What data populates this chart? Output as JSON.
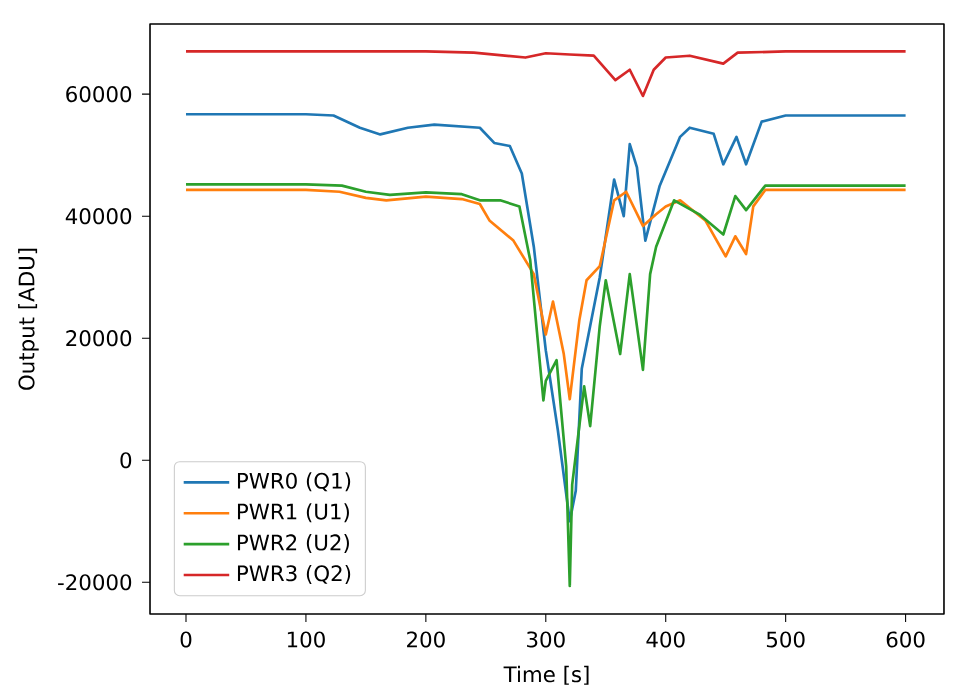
{
  "chart_data": {
    "type": "line",
    "xlabel": "Time [s]",
    "ylabel": "Output [ADU]",
    "xlim": [
      -30,
      632
    ],
    "ylim": [
      -25200,
      71500
    ],
    "xticks": [
      0,
      100,
      200,
      300,
      400,
      500,
      600
    ],
    "yticks": [
      -20000,
      0,
      20000,
      40000,
      60000
    ],
    "grid": false,
    "legend": "bottom left",
    "marker": "none",
    "line_style": "solid",
    "series": [
      {
        "name": "PWR0 (Q1)",
        "color": "#1f77b4",
        "x": [
          0,
          100,
          123,
          145,
          162,
          185,
          207,
          245,
          257,
          270,
          280,
          290,
          300,
          310,
          320,
          325,
          330,
          337,
          345,
          357,
          365,
          370,
          376,
          383,
          395,
          412,
          420,
          440,
          448,
          459,
          467,
          480,
          500,
          600
        ],
        "values": [
          56700,
          56700,
          56500,
          54500,
          53400,
          54500,
          55000,
          54500,
          52000,
          51500,
          47000,
          35000,
          18000,
          5000,
          -10000,
          -5000,
          15000,
          22000,
          30000,
          46000,
          40000,
          51800,
          48000,
          36000,
          45000,
          53000,
          54500,
          53500,
          48500,
          53000,
          48500,
          55500,
          56500,
          56500
        ]
      },
      {
        "name": "PWR1 (U1)",
        "color": "#ff7f0e",
        "x": [
          0,
          100,
          128,
          150,
          167,
          200,
          230,
          245,
          253,
          273,
          290,
          300,
          306,
          315,
          320,
          328,
          334,
          345,
          357,
          367,
          381,
          392,
          400,
          412,
          433,
          450,
          458,
          467,
          473,
          483,
          600
        ],
        "values": [
          44300,
          44300,
          44000,
          43000,
          42600,
          43200,
          42800,
          42000,
          39300,
          36000,
          30500,
          20600,
          26000,
          17400,
          10000,
          23000,
          29500,
          31800,
          42600,
          44000,
          38400,
          40300,
          41600,
          42600,
          39300,
          33400,
          36700,
          33800,
          41600,
          44300,
          44300
        ]
      },
      {
        "name": "PWR2 (U2)",
        "color": "#2ca02c",
        "x": [
          0,
          100,
          130,
          150,
          170,
          200,
          230,
          245,
          262,
          278,
          287,
          298,
          300,
          309,
          317,
          320,
          322,
          332,
          337,
          345,
          350,
          362,
          370,
          381,
          387,
          392,
          407,
          428,
          448,
          458,
          467,
          483,
          600
        ],
        "values": [
          45200,
          45200,
          45000,
          44000,
          43500,
          43900,
          43600,
          42600,
          42600,
          41600,
          32800,
          9800,
          13000,
          16400,
          -1000,
          -20600,
          -4000,
          12100,
          5600,
          22000,
          29500,
          17400,
          30500,
          14800,
          30500,
          35000,
          42600,
          40300,
          37000,
          43300,
          41000,
          45000,
          45000
        ]
      },
      {
        "name": "PWR3 (Q2)",
        "color": "#d62728",
        "x": [
          0,
          100,
          200,
          240,
          283,
          300,
          320,
          340,
          358,
          370,
          381,
          390,
          400,
          420,
          448,
          460,
          500,
          600
        ],
        "values": [
          67000,
          67000,
          67000,
          66800,
          66000,
          66700,
          66500,
          66300,
          62300,
          64000,
          59700,
          64000,
          66000,
          66300,
          65000,
          66800,
          67000,
          67000
        ]
      }
    ]
  }
}
